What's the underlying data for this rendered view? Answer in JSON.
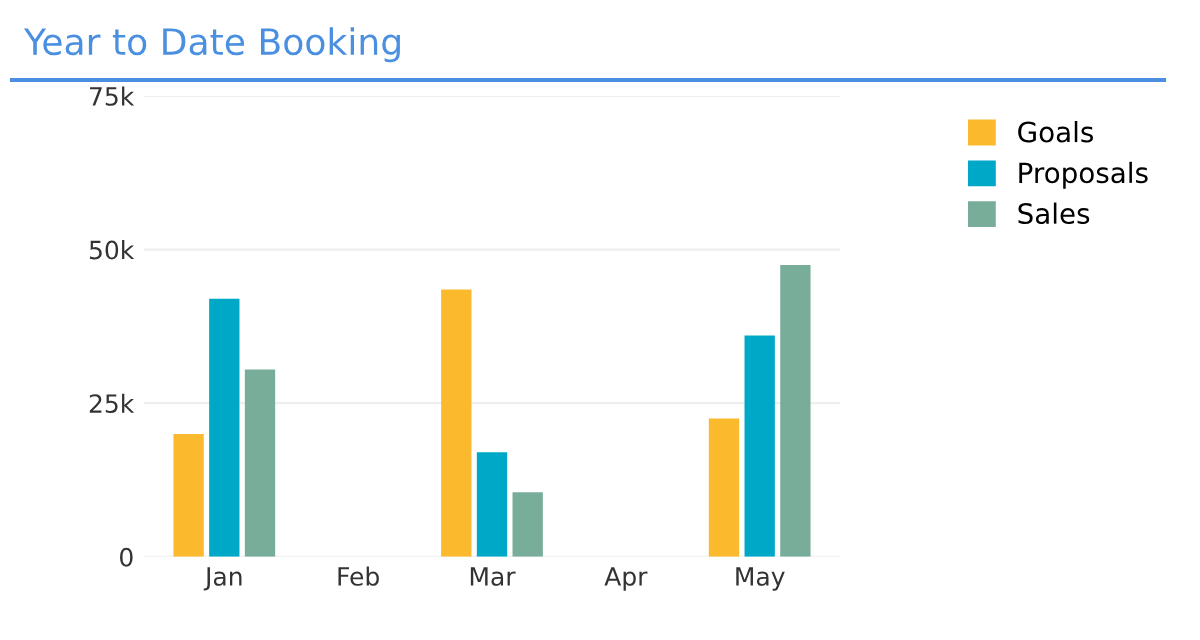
{
  "chart_data": {
    "type": "bar",
    "title": "Year to Date Booking",
    "categories": [
      "Jan",
      "Feb",
      "Mar",
      "Apr",
      "May"
    ],
    "series": [
      {
        "name": "Goals",
        "color": "#fbb92e",
        "values": [
          20000,
          null,
          43500,
          null,
          22500
        ]
      },
      {
        "name": "Proposals",
        "color": "#00a8c8",
        "values": [
          42000,
          null,
          17000,
          null,
          36000
        ]
      },
      {
        "name": "Sales",
        "color": "#78ad99",
        "values": [
          30500,
          null,
          10500,
          null,
          47500
        ]
      }
    ],
    "ylim": [
      0,
      75000
    ],
    "yticks": [
      {
        "value": 0,
        "label": "0"
      },
      {
        "value": 25000,
        "label": "25k"
      },
      {
        "value": 50000,
        "label": "50k"
      },
      {
        "value": 75000,
        "label": "75k"
      }
    ],
    "grid": "y",
    "legend": "right"
  }
}
